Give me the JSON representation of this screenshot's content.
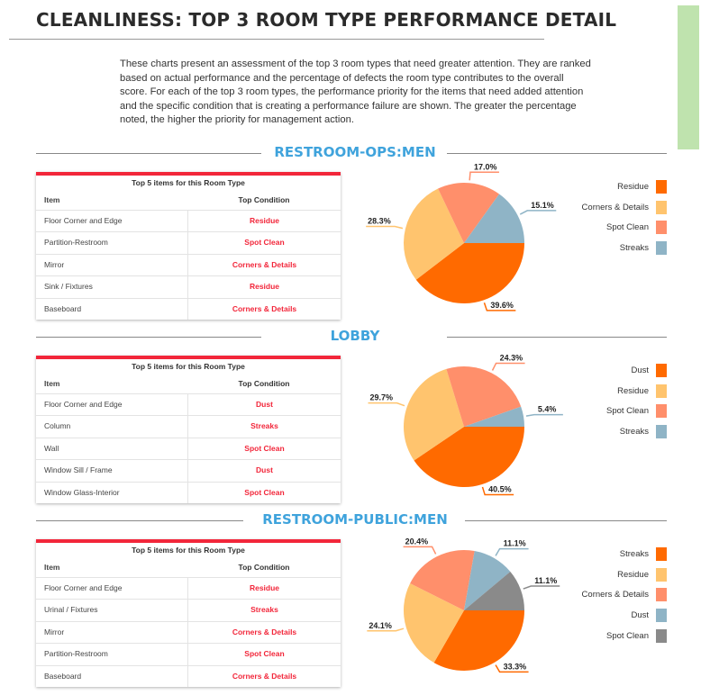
{
  "title": "CLEANLINESS: TOP 3 ROOM TYPE PERFORMANCE DETAIL",
  "intro": "These charts present an assessment of the top 3 room types that need greater attention. They are ranked based on actual performance and the percentage of defects the room type contributes to the overall score. For each of the top 3 room types, the performance priority for the items that need added attention and the specific condition that is creating a performance failure are shown. The greater the percentage noted, the higher the priority for management action.",
  "table_caption": "Top 5 items for this Room Type",
  "col_item": "Item",
  "col_condition": "Top Condition",
  "colors": [
    "#ff6a00",
    "#ffc46e",
    "#ff8f6b",
    "#8fb4c6",
    "#8a8a8a"
  ],
  "sections": [
    {
      "name": "RESTROOM-OPS:MEN",
      "rows": [
        [
          "Floor Corner and Edge",
          "Residue"
        ],
        [
          "Partition-Restroom",
          "Spot Clean"
        ],
        [
          "Mirror",
          "Corners & Details"
        ],
        [
          "Sink / Fixtures",
          "Residue"
        ],
        [
          "Baseboard",
          "Corners & Details"
        ]
      ]
    },
    {
      "name": "LOBBY",
      "rows": [
        [
          "Floor Corner and Edge",
          "Dust"
        ],
        [
          "Column",
          "Streaks"
        ],
        [
          "Wall",
          "Spot Clean"
        ],
        [
          "Window Sill / Frame",
          "Dust"
        ],
        [
          "Window Glass-Interior",
          "Spot Clean"
        ]
      ]
    },
    {
      "name": "RESTROOM-PUBLIC:MEN",
      "rows": [
        [
          "Floor Corner and Edge",
          "Residue"
        ],
        [
          "Urinal / Fixtures",
          "Streaks"
        ],
        [
          "Mirror",
          "Corners & Details"
        ],
        [
          "Partition-Restroom",
          "Spot Clean"
        ],
        [
          "Baseboard",
          "Corners & Details"
        ]
      ]
    }
  ],
  "chart_data": [
    {
      "type": "pie",
      "title": "RESTROOM-OPS:MEN",
      "labels": [
        "Residue",
        "Corners & Details",
        "Spot Clean",
        "Streaks"
      ],
      "values": [
        39.6,
        28.3,
        17.0,
        15.1
      ],
      "value_labels": [
        "39.6%",
        "28.3%",
        "17.0%",
        "15.1%"
      ],
      "legend": "right"
    },
    {
      "type": "pie",
      "title": "LOBBY",
      "labels": [
        "Dust",
        "Residue",
        "Spot Clean",
        "Streaks"
      ],
      "values": [
        40.5,
        29.7,
        24.3,
        5.4
      ],
      "value_labels": [
        "40.5%",
        "29.7%",
        "24.3%",
        "5.4%"
      ],
      "legend": "right"
    },
    {
      "type": "pie",
      "title": "RESTROOM-PUBLIC:MEN",
      "labels": [
        "Streaks",
        "Residue",
        "Corners & Details",
        "Dust",
        "Spot Clean"
      ],
      "values": [
        33.3,
        24.1,
        20.4,
        11.1,
        11.1
      ],
      "value_labels": [
        "33.3%",
        "24.1%",
        "20.4%",
        "11.1%",
        "11.1%"
      ],
      "legend": "right"
    }
  ]
}
